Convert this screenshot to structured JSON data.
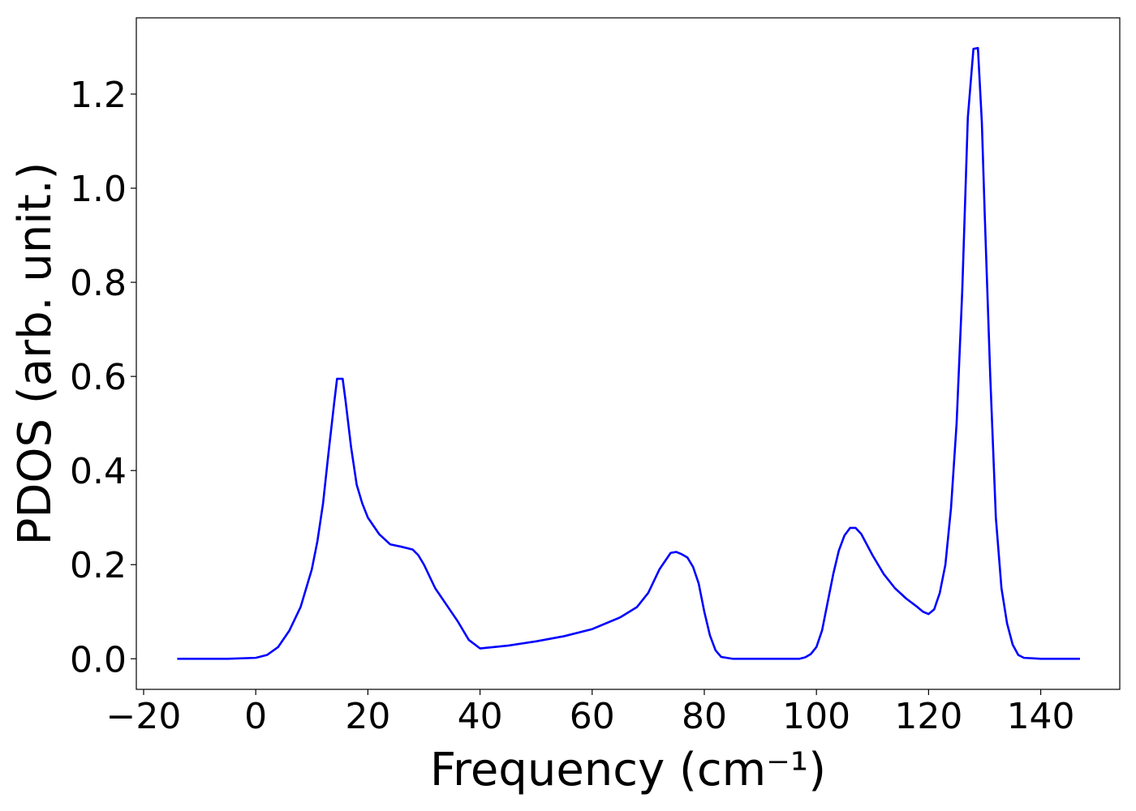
{
  "chart_data": {
    "type": "line",
    "x_label": "Frequency (cm⁻¹)",
    "y_label": "PDOS (arb. unit.)",
    "x": [
      -14,
      -5,
      0,
      2,
      4,
      6,
      8,
      10,
      11,
      12,
      13,
      14,
      14.5,
      15.5,
      16,
      17,
      18,
      19,
      20,
      22,
      24,
      26,
      28,
      29,
      30,
      32,
      34,
      36,
      38,
      40,
      45,
      50,
      55,
      60,
      65,
      68,
      70,
      72,
      74,
      75,
      76,
      77,
      78,
      79,
      80,
      81,
      82,
      83,
      85,
      90,
      97,
      98,
      99,
      100,
      101,
      102,
      103,
      104,
      105,
      106,
      107,
      108,
      110,
      112,
      114,
      116,
      118,
      119,
      120,
      121,
      122,
      123,
      124,
      125,
      126,
      127,
      128,
      128.8,
      129.5,
      130,
      131,
      132,
      133,
      134,
      135,
      136,
      137,
      140,
      147
    ],
    "series": [
      {
        "color": "#0000ff",
        "values": [
          0,
          0,
          0.002,
          0.008,
          0.025,
          0.06,
          0.11,
          0.19,
          0.25,
          0.33,
          0.44,
          0.545,
          0.595,
          0.595,
          0.55,
          0.45,
          0.37,
          0.33,
          0.3,
          0.265,
          0.243,
          0.238,
          0.232,
          0.22,
          0.2,
          0.15,
          0.115,
          0.08,
          0.04,
          0.022,
          0.028,
          0.037,
          0.048,
          0.063,
          0.088,
          0.11,
          0.14,
          0.19,
          0.225,
          0.227,
          0.222,
          0.215,
          0.195,
          0.16,
          0.1,
          0.05,
          0.018,
          0.004,
          0,
          0,
          0,
          0.003,
          0.01,
          0.025,
          0.06,
          0.12,
          0.18,
          0.23,
          0.262,
          0.278,
          0.278,
          0.265,
          0.22,
          0.18,
          0.15,
          0.128,
          0.11,
          0.1,
          0.095,
          0.105,
          0.14,
          0.2,
          0.32,
          0.5,
          0.78,
          1.15,
          1.296,
          1.298,
          1.14,
          0.95,
          0.6,
          0.3,
          0.15,
          0.075,
          0.03,
          0.008,
          0.002,
          0,
          0
        ]
      }
    ],
    "xlim": [
      -21.3,
      154.1
    ],
    "ylim": [
      -0.065,
      1.362
    ],
    "xticks": [
      {
        "value": -20,
        "label": "−20"
      },
      0,
      20,
      40,
      60,
      80,
      100,
      120,
      140
    ],
    "yticks": [
      {
        "value": 0,
        "label": "0.0"
      },
      {
        "value": 0.2,
        "label": "0.2"
      },
      {
        "value": 0.4,
        "label": "0.4"
      },
      {
        "value": 0.6,
        "label": "0.6"
      },
      {
        "value": 0.8,
        "label": "0.8"
      },
      {
        "value": 1,
        "label": "1.0"
      },
      {
        "value": 1.2,
        "label": "1.2"
      }
    ]
  }
}
